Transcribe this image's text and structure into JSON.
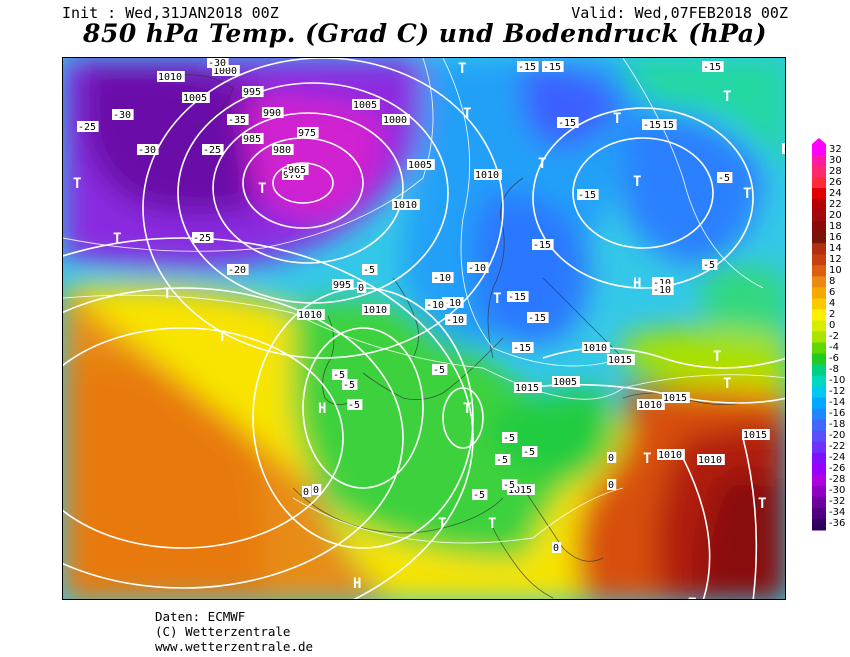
{
  "header": {
    "init": "Init : Wed,31JAN2018 00Z",
    "valid": "Valid: Wed,07FEB2018 00Z",
    "title": "850 hPa Temp. (Grad C) und Bodendruck (hPa)"
  },
  "credits": {
    "line1": "Daten: ECMWF",
    "line2": "(C) Wetterzentrale",
    "line3": "www.wetterzentrale.de"
  },
  "legend": {
    "labels": [
      "32",
      "30",
      "28",
      "26",
      "24",
      "22",
      "20",
      "18",
      "16",
      "14",
      "12",
      "10",
      "8",
      "6",
      "4",
      "2",
      "0",
      "-2",
      "-4",
      "-6",
      "-8",
      "-10",
      "-12",
      "-14",
      "-16",
      "-18",
      "-20",
      "-22",
      "-24",
      "-26",
      "-28",
      "-30",
      "-32",
      "-34",
      "-36"
    ],
    "colors": [
      "#ff00ff",
      "#ff1aa8",
      "#ff2a6e",
      "#ff2a3a",
      "#e00000",
      "#b40000",
      "#a00a0a",
      "#8a0a0a",
      "#7a1408",
      "#b03010",
      "#c84010",
      "#dd6010",
      "#ea8a10",
      "#f4a800",
      "#fcc800",
      "#fff000",
      "#d8ec00",
      "#a8e400",
      "#60d800",
      "#20cc20",
      "#00d080",
      "#00d8c0",
      "#00c8f0",
      "#00a8ff",
      "#2088ff",
      "#4068ff",
      "#5a50ff",
      "#7030ff",
      "#8010ff",
      "#9800ff",
      "#b000e0",
      "#9000c0",
      "#7000a0",
      "#500080",
      "#300060"
    ]
  },
  "map": {
    "pressure_labels": [
      {
        "text": "1010"
      },
      {
        "text": "1005"
      },
      {
        "text": "1000"
      },
      {
        "text": "995"
      },
      {
        "text": "990"
      },
      {
        "text": "985"
      },
      {
        "text": "980"
      },
      {
        "text": "975"
      },
      {
        "text": "970"
      },
      {
        "text": "965"
      },
      {
        "text": "995"
      },
      {
        "text": "1010"
      },
      {
        "text": "1010"
      },
      {
        "text": "1015"
      },
      {
        "text": "1010"
      },
      {
        "text": "1005"
      },
      {
        "text": "1015"
      },
      {
        "text": "1010"
      },
      {
        "text": "1015"
      },
      {
        "text": "1010"
      },
      {
        "text": "1010"
      },
      {
        "text": "1015"
      },
      {
        "text": "1015"
      },
      {
        "text": "1010"
      },
      {
        "text": "1005"
      },
      {
        "text": "1010"
      },
      {
        "text": "1005"
      },
      {
        "text": "1000"
      }
    ],
    "temp_labels": [
      {
        "text": "-30"
      },
      {
        "text": "-25"
      },
      {
        "text": "-30"
      },
      {
        "text": "-35"
      },
      {
        "text": "-25"
      },
      {
        "text": "-30"
      },
      {
        "text": "-25"
      },
      {
        "text": "-20"
      },
      {
        "text": "-15"
      },
      {
        "text": "-10"
      },
      {
        "text": "-5"
      },
      {
        "text": "0"
      },
      {
        "text": "-5"
      },
      {
        "text": "-5"
      },
      {
        "text": "-5"
      },
      {
        "text": "-10"
      },
      {
        "text": "-10"
      },
      {
        "text": "-15"
      },
      {
        "text": "-15"
      },
      {
        "text": "-15"
      },
      {
        "text": "-15"
      },
      {
        "text": "-15"
      },
      {
        "text": "-15"
      },
      {
        "text": "-5"
      },
      {
        "text": "-5"
      },
      {
        "text": "-5"
      },
      {
        "text": "-10"
      },
      {
        "text": "-10"
      },
      {
        "text": "-5"
      },
      {
        "text": "-5"
      },
      {
        "text": "-5"
      },
      {
        "text": "0"
      },
      {
        "text": "0"
      },
      {
        "text": "0"
      },
      {
        "text": "0"
      },
      {
        "text": "0"
      },
      {
        "text": "-10"
      },
      {
        "text": "-10"
      },
      {
        "text": "-15"
      },
      {
        "text": "-15"
      },
      {
        "text": "-15"
      },
      {
        "text": "-15"
      },
      {
        "text": "-5"
      },
      {
        "text": "-5"
      },
      {
        "text": "-5"
      }
    ],
    "system_markers": [
      {
        "text": "T"
      },
      {
        "text": "T"
      },
      {
        "text": "T"
      },
      {
        "text": "T"
      },
      {
        "text": "T"
      },
      {
        "text": "T"
      },
      {
        "text": "T"
      },
      {
        "text": "T"
      },
      {
        "text": "T"
      },
      {
        "text": "T"
      },
      {
        "text": "T"
      },
      {
        "text": "T"
      },
      {
        "text": "T"
      },
      {
        "text": "T"
      },
      {
        "text": "T"
      },
      {
        "text": "T"
      },
      {
        "text": "T"
      },
      {
        "text": "T"
      },
      {
        "text": "T"
      },
      {
        "text": "T"
      },
      {
        "text": "T"
      },
      {
        "text": "H"
      },
      {
        "text": "H"
      },
      {
        "text": "H"
      }
    ]
  }
}
